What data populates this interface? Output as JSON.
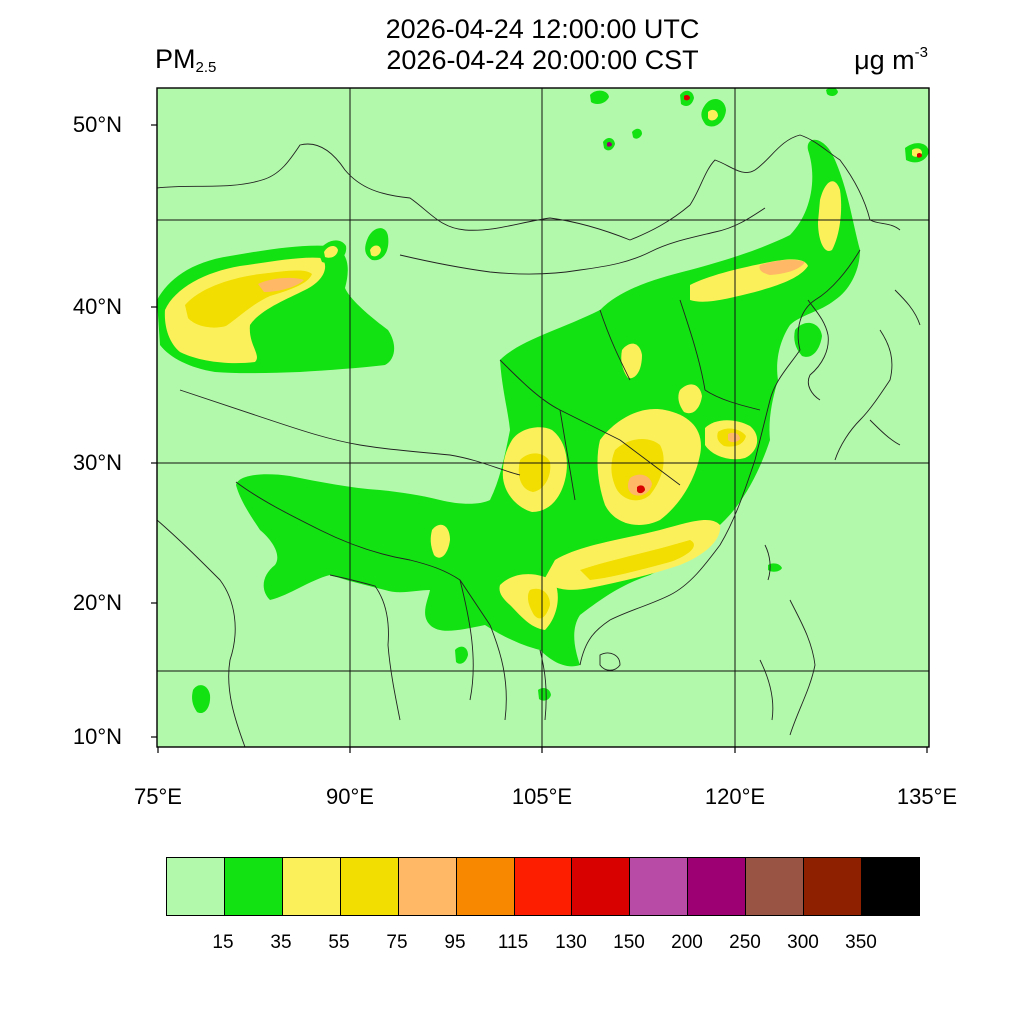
{
  "title": {
    "line1": "2026-04-24 12:00:00 UTC",
    "line2": "2026-04-24 20:00:00 CST"
  },
  "variable": {
    "name": "PM",
    "subscript": "2.5"
  },
  "units": {
    "base": "μg m",
    "exponent": "-3"
  },
  "axes": {
    "lat_labels": [
      "50°N",
      "40°N",
      "30°N",
      "20°N",
      "10°N"
    ],
    "lon_labels": [
      "75°E",
      "90°E",
      "105°E",
      "120°E",
      "135°E"
    ]
  },
  "colorbar": {
    "colors": [
      "#b3f9ab",
      "#12e212",
      "#fcf05a",
      "#f2de00",
      "#feb866",
      "#f78800",
      "#fd1e00",
      "#d90000",
      "#b84ba6",
      "#9c0072",
      "#9a5444",
      "#8e2000",
      "#000000"
    ],
    "labels": [
      "15",
      "35",
      "55",
      "75",
      "95",
      "115",
      "130",
      "150",
      "200",
      "250",
      "300",
      "350"
    ]
  },
  "map_colors": {
    "background": "#b3f9ab",
    "light_green": "#12e212",
    "yellow": "#fcf05a",
    "gold": "#f2de00",
    "tan": "#feb866",
    "red": "#d90000",
    "purple": "#9c0072"
  }
}
